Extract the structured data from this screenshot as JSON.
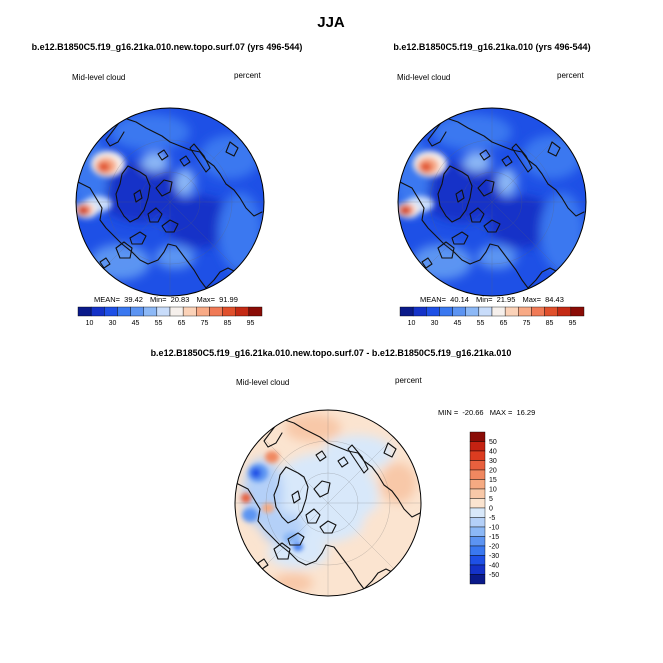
{
  "figure": {
    "main_title": "JJA",
    "colors": {
      "main_ramp": [
        "#0a1a8a",
        "#1432c8",
        "#1e50e6",
        "#3a78f0",
        "#5c94f2",
        "#8cb8f6",
        "#c8dcfa",
        "#f6f0ec",
        "#fbd2b8",
        "#f8aa86",
        "#f07a56",
        "#e0502c",
        "#c42a14",
        "#8a0c06"
      ],
      "diff_ramp": [
        "#0a1a8a",
        "#1432c8",
        "#1e50e6",
        "#3a78f0",
        "#5c94f2",
        "#8cb8f6",
        "#b4d0f8",
        "#d8e8fa",
        "#fbe4d0",
        "#f8c8a8",
        "#f5aa82",
        "#f08860",
        "#e8603e",
        "#dc3c20",
        "#c42212",
        "#8a0c06"
      ],
      "coast": "#111111"
    }
  },
  "chart_data": [
    {
      "type": "heatmap",
      "projection": "polar-stereographic",
      "title": "b.e12.B1850C5.f19_g16.21ka.010.new.topo.surf.07 (yrs 496-544)",
      "variable": "Mid-level cloud",
      "units": "percent",
      "stats": {
        "mean_label": "MEAN=",
        "mean": "39.42",
        "min_label": "Min=",
        "min": "20.83",
        "max_label": "Max=",
        "max": "91.99"
      },
      "colorbar": {
        "orientation": "horizontal",
        "tick_labels": [
          "10",
          "30",
          "45",
          "55",
          "65",
          "75",
          "85",
          "95"
        ]
      }
    },
    {
      "type": "heatmap",
      "projection": "polar-stereographic",
      "title": "b.e12.B1850C5.f19_g16.21ka.010 (yrs 496-544)",
      "variable": "Mid-level cloud",
      "units": "percent",
      "stats": {
        "mean_label": "MEAN=",
        "mean": "40.14",
        "min_label": "Min=",
        "min": "21.95",
        "max_label": "Max=",
        "max": "84.43"
      },
      "colorbar": {
        "orientation": "horizontal",
        "tick_labels": [
          "10",
          "30",
          "45",
          "55",
          "65",
          "75",
          "85",
          "95"
        ]
      }
    },
    {
      "type": "heatmap",
      "projection": "polar-stereographic",
      "title": "b.e12.B1850C5.f19_g16.21ka.010.new.topo.surf.07 - b.e12.B1850C5.f19_g16.21ka.010",
      "variable": "Mid-level cloud",
      "units": "percent",
      "stats": {
        "min_label": "MIN =",
        "min": "-20.66",
        "max_label": "MAX =",
        "max": "16.29"
      },
      "colorbar": {
        "orientation": "vertical",
        "tick_labels": [
          "50",
          "40",
          "30",
          "20",
          "15",
          "10",
          "5",
          "0",
          "-5",
          "-10",
          "-15",
          "-20",
          "-30",
          "-40",
          "-50"
        ]
      }
    }
  ]
}
